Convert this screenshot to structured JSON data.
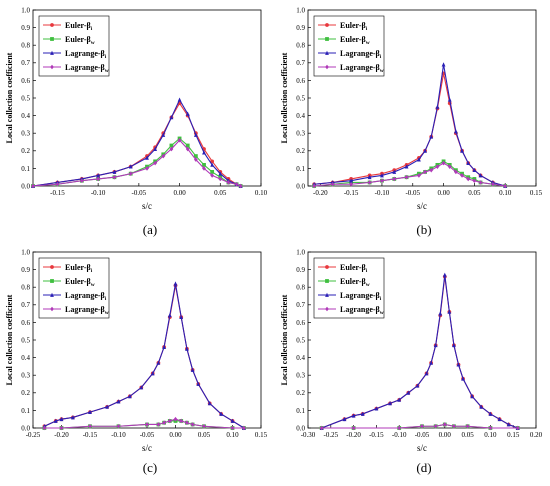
{
  "colors": {
    "euler_i": "#e8383d",
    "euler_w": "#3fbf3f",
    "lagrange_i": "#2a1fb5",
    "lagrange_w": "#b03ab8"
  },
  "chart_data": [
    {
      "panel": "(a)",
      "type": "line",
      "xlabel": "s/c",
      "ylabel": "Local collection coefficient",
      "xlim": [
        -0.18,
        0.1
      ],
      "ylim": [
        0,
        1.0
      ],
      "xticks": [
        -0.15,
        -0.1,
        -0.05,
        0.0,
        0.05,
        0.1
      ],
      "xtick_labels": [
        "-0.15",
        "-0.10",
        "-0.05",
        "0.00",
        "0.05",
        "0.10"
      ],
      "yticks": [
        0,
        0.1,
        0.2,
        0.3,
        0.4,
        0.5,
        0.6,
        0.7,
        0.8,
        0.9,
        1.0
      ],
      "ytick_labels": [
        "0.0",
        "0.1",
        "0.2",
        "0.3",
        "0.4",
        "0.5",
        "0.6",
        "0.7",
        "0.8",
        "0.9",
        "1.0"
      ],
      "legend": [
        "Euler-βi",
        "Euler-βw",
        "Lagrange-βi",
        "Lagrange-βw"
      ],
      "series": [
        {
          "name": "Euler-βi",
          "x": [
            -0.18,
            -0.15,
            -0.12,
            -0.1,
            -0.08,
            -0.06,
            -0.04,
            -0.03,
            -0.02,
            -0.01,
            0,
            0.01,
            0.02,
            0.03,
            0.04,
            0.05,
            0.06,
            0.07,
            0.075
          ],
          "y": [
            0,
            0.02,
            0.04,
            0.06,
            0.08,
            0.11,
            0.17,
            0.22,
            0.3,
            0.39,
            0.47,
            0.4,
            0.3,
            0.21,
            0.14,
            0.08,
            0.04,
            0.01,
            0
          ]
        },
        {
          "name": "Euler-βw",
          "x": [
            -0.18,
            -0.15,
            -0.12,
            -0.1,
            -0.08,
            -0.06,
            -0.04,
            -0.03,
            -0.02,
            -0.01,
            0,
            0.01,
            0.02,
            0.03,
            0.04,
            0.05,
            0.06,
            0.07,
            0.075
          ],
          "y": [
            0,
            0.01,
            0.03,
            0.04,
            0.05,
            0.07,
            0.11,
            0.14,
            0.18,
            0.23,
            0.27,
            0.23,
            0.17,
            0.12,
            0.08,
            0.05,
            0.02,
            0.01,
            0
          ]
        },
        {
          "name": "Lagrange-βi",
          "x": [
            -0.18,
            -0.15,
            -0.12,
            -0.1,
            -0.08,
            -0.06,
            -0.04,
            -0.03,
            -0.02,
            -0.01,
            0,
            0.01,
            0.02,
            0.03,
            0.04,
            0.05,
            0.06,
            0.07,
            0.075
          ],
          "y": [
            0,
            0.02,
            0.04,
            0.06,
            0.08,
            0.11,
            0.16,
            0.21,
            0.29,
            0.39,
            0.49,
            0.41,
            0.29,
            0.19,
            0.12,
            0.07,
            0.03,
            0.01,
            0
          ]
        },
        {
          "name": "Lagrange-βw",
          "x": [
            -0.18,
            -0.15,
            -0.12,
            -0.1,
            -0.08,
            -0.06,
            -0.04,
            -0.03,
            -0.02,
            -0.01,
            0,
            0.01,
            0.02,
            0.03,
            0.04,
            0.05,
            0.06,
            0.07,
            0.075
          ],
          "y": [
            0,
            0.01,
            0.03,
            0.04,
            0.05,
            0.07,
            0.1,
            0.13,
            0.17,
            0.21,
            0.26,
            0.21,
            0.15,
            0.1,
            0.06,
            0.04,
            0.02,
            0.01,
            0
          ]
        }
      ]
    },
    {
      "panel": "(b)",
      "type": "line",
      "xlabel": "s/c",
      "ylabel": "Local collection coefficient",
      "xlim": [
        -0.22,
        0.15
      ],
      "ylim": [
        0,
        1.0
      ],
      "xticks": [
        -0.2,
        -0.15,
        -0.1,
        -0.05,
        0.0,
        0.05,
        0.1,
        0.15
      ],
      "xtick_labels": [
        "-0.20",
        "-0.15",
        "-0.10",
        "-0.05",
        "0.00",
        "0.05",
        "0.10",
        "0.15"
      ],
      "yticks": [
        0,
        0.1,
        0.2,
        0.3,
        0.4,
        0.5,
        0.6,
        0.7,
        0.8,
        0.9,
        1.0
      ],
      "ytick_labels": [
        "0.0",
        "0.1",
        "0.2",
        "0.3",
        "0.4",
        "0.5",
        "0.6",
        "0.7",
        "0.8",
        "0.9",
        "1.0"
      ],
      "legend": [
        "Euler-βi",
        "Euler-βw",
        "Lagrange-βi",
        "Lagrange-βw"
      ],
      "series": [
        {
          "name": "Euler-βi",
          "x": [
            -0.21,
            -0.18,
            -0.15,
            -0.12,
            -0.1,
            -0.08,
            -0.06,
            -0.04,
            -0.03,
            -0.02,
            -0.01,
            0,
            0.01,
            0.02,
            0.03,
            0.04,
            0.05,
            0.06,
            0.08,
            0.1
          ],
          "y": [
            0.01,
            0.02,
            0.04,
            0.06,
            0.07,
            0.09,
            0.12,
            0.16,
            0.2,
            0.28,
            0.44,
            0.64,
            0.47,
            0.3,
            0.2,
            0.13,
            0.09,
            0.06,
            0.02,
            0
          ]
        },
        {
          "name": "Euler-βw",
          "x": [
            -0.21,
            -0.18,
            -0.15,
            -0.12,
            -0.1,
            -0.08,
            -0.06,
            -0.04,
            -0.03,
            -0.02,
            -0.01,
            0,
            0.01,
            0.02,
            0.03,
            0.04,
            0.05,
            0.06,
            0.08,
            0.1
          ],
          "y": [
            0,
            0.01,
            0.02,
            0.02,
            0.03,
            0.04,
            0.05,
            0.07,
            0.08,
            0.1,
            0.12,
            0.14,
            0.12,
            0.09,
            0.07,
            0.05,
            0.04,
            0.02,
            0.01,
            0
          ]
        },
        {
          "name": "Lagrange-βi",
          "x": [
            -0.21,
            -0.18,
            -0.15,
            -0.12,
            -0.1,
            -0.08,
            -0.06,
            -0.04,
            -0.03,
            -0.02,
            -0.01,
            0,
            0.01,
            0.02,
            0.03,
            0.04,
            0.05,
            0.06,
            0.08,
            0.1
          ],
          "y": [
            0.01,
            0.02,
            0.03,
            0.05,
            0.06,
            0.08,
            0.11,
            0.15,
            0.2,
            0.28,
            0.45,
            0.69,
            0.49,
            0.31,
            0.2,
            0.13,
            0.09,
            0.06,
            0.02,
            0
          ]
        },
        {
          "name": "Lagrange-βw",
          "x": [
            -0.21,
            -0.18,
            -0.15,
            -0.12,
            -0.1,
            -0.08,
            -0.06,
            -0.04,
            -0.03,
            -0.02,
            -0.01,
            0,
            0.01,
            0.02,
            0.03,
            0.04,
            0.05,
            0.06,
            0.08,
            0.1
          ],
          "y": [
            0,
            0.01,
            0.01,
            0.02,
            0.03,
            0.04,
            0.05,
            0.06,
            0.08,
            0.09,
            0.11,
            0.13,
            0.11,
            0.08,
            0.06,
            0.04,
            0.03,
            0.02,
            0.01,
            0
          ]
        }
      ]
    },
    {
      "panel": "(c)",
      "type": "line",
      "xlabel": "s/c",
      "ylabel": "Local collection coefficient",
      "xlim": [
        -0.25,
        0.15
      ],
      "ylim": [
        0,
        1.0
      ],
      "xticks": [
        -0.25,
        -0.2,
        -0.15,
        -0.1,
        -0.05,
        0.0,
        0.05,
        0.1,
        0.15
      ],
      "xtick_labels": [
        "-0.25",
        "-0.20",
        "-0.15",
        "-0.10",
        "-0.05",
        "0.00",
        "0.05",
        "0.10",
        "0.15"
      ],
      "yticks": [
        0,
        0.1,
        0.2,
        0.3,
        0.4,
        0.5,
        0.6,
        0.7,
        0.8,
        0.9,
        1.0
      ],
      "ytick_labels": [
        "0.0",
        "0.1",
        "0.2",
        "0.3",
        "0.4",
        "0.5",
        "0.6",
        "0.7",
        "0.8",
        "0.9",
        "1.0"
      ],
      "legend": [
        "Euler-βi",
        "Euler-βw",
        "Lagrange-βi",
        "Lagrange-βw"
      ],
      "series": [
        {
          "name": "Euler-βi",
          "x": [
            -0.23,
            -0.21,
            -0.2,
            -0.18,
            -0.15,
            -0.12,
            -0.1,
            -0.08,
            -0.06,
            -0.04,
            -0.03,
            -0.02,
            -0.01,
            0,
            0.01,
            0.02,
            0.03,
            0.04,
            0.06,
            0.08,
            0.1,
            0.12
          ],
          "y": [
            0.01,
            0.04,
            0.05,
            0.06,
            0.09,
            0.12,
            0.15,
            0.18,
            0.23,
            0.31,
            0.37,
            0.46,
            0.63,
            0.81,
            0.63,
            0.45,
            0.33,
            0.25,
            0.14,
            0.08,
            0.04,
            0
          ]
        },
        {
          "name": "Euler-βw",
          "x": [
            -0.23,
            -0.2,
            -0.15,
            -0.1,
            -0.05,
            -0.03,
            -0.02,
            -0.01,
            0,
            0.01,
            0.02,
            0.03,
            0.05,
            0.1,
            0.12
          ],
          "y": [
            0,
            0.0,
            0.01,
            0.01,
            0.02,
            0.02,
            0.03,
            0.04,
            0.04,
            0.04,
            0.03,
            0.02,
            0.01,
            0.0,
            0
          ]
        },
        {
          "name": "Lagrange-βi",
          "x": [
            -0.23,
            -0.21,
            -0.2,
            -0.18,
            -0.15,
            -0.12,
            -0.1,
            -0.08,
            -0.06,
            -0.04,
            -0.03,
            -0.02,
            -0.01,
            0,
            0.01,
            0.02,
            0.03,
            0.04,
            0.06,
            0.08,
            0.1,
            0.12
          ],
          "y": [
            0.01,
            0.04,
            0.05,
            0.06,
            0.09,
            0.12,
            0.15,
            0.18,
            0.23,
            0.31,
            0.37,
            0.46,
            0.64,
            0.82,
            0.63,
            0.45,
            0.33,
            0.25,
            0.14,
            0.08,
            0.04,
            0
          ]
        },
        {
          "name": "Lagrange-βw",
          "x": [
            -0.23,
            -0.2,
            -0.15,
            -0.1,
            -0.05,
            -0.03,
            -0.02,
            -0.01,
            0,
            0.01,
            0.02,
            0.03,
            0.05,
            0.1,
            0.12
          ],
          "y": [
            0,
            0.0,
            0.01,
            0.01,
            0.02,
            0.02,
            0.03,
            0.04,
            0.05,
            0.04,
            0.03,
            0.02,
            0.01,
            0.0,
            0
          ]
        }
      ]
    },
    {
      "panel": "(d)",
      "type": "line",
      "xlabel": "s/c",
      "ylabel": "Local collection coefficient",
      "xlim": [
        -0.3,
        0.2
      ],
      "ylim": [
        0,
        1.0
      ],
      "xticks": [
        -0.3,
        -0.25,
        -0.2,
        -0.15,
        -0.1,
        -0.05,
        0.0,
        0.05,
        0.1,
        0.15,
        0.2
      ],
      "xtick_labels": [
        "-0.30",
        "-0.25",
        "-0.20",
        "-0.15",
        "-0.10",
        "-0.05",
        "0.00",
        "0.05",
        "0.10",
        "0.15",
        "0.20"
      ],
      "yticks": [
        0,
        0.1,
        0.2,
        0.3,
        0.4,
        0.5,
        0.6,
        0.7,
        0.8,
        0.9,
        1.0
      ],
      "ytick_labels": [
        "0.0",
        "0.1",
        "0.2",
        "0.3",
        "0.4",
        "0.5",
        "0.6",
        "0.7",
        "0.8",
        "0.9",
        "1.0"
      ],
      "legend": [
        "Euler-βi",
        "Euler-βw",
        "Lagrange-βi",
        "Lagrange-βw"
      ],
      "series": [
        {
          "name": "Euler-βi",
          "x": [
            -0.27,
            -0.22,
            -0.2,
            -0.18,
            -0.15,
            -0.12,
            -0.1,
            -0.08,
            -0.06,
            -0.04,
            -0.03,
            -0.02,
            -0.01,
            0,
            0.01,
            0.02,
            0.03,
            0.04,
            0.06,
            0.08,
            0.1,
            0.12,
            0.14,
            0.16
          ],
          "y": [
            0.0,
            0.05,
            0.07,
            0.08,
            0.11,
            0.14,
            0.16,
            0.2,
            0.24,
            0.31,
            0.37,
            0.47,
            0.64,
            0.86,
            0.66,
            0.47,
            0.36,
            0.28,
            0.18,
            0.12,
            0.08,
            0.05,
            0.02,
            0
          ]
        },
        {
          "name": "Euler-βw",
          "x": [
            -0.27,
            -0.2,
            -0.1,
            -0.05,
            -0.02,
            0,
            0.02,
            0.05,
            0.1,
            0.16
          ],
          "y": [
            0,
            0.0,
            0.0,
            0.01,
            0.01,
            0.02,
            0.01,
            0.01,
            0.0,
            0
          ]
        },
        {
          "name": "Lagrange-βi",
          "x": [
            -0.27,
            -0.22,
            -0.2,
            -0.18,
            -0.15,
            -0.12,
            -0.1,
            -0.08,
            -0.06,
            -0.04,
            -0.03,
            -0.02,
            -0.01,
            0,
            0.01,
            0.02,
            0.03,
            0.04,
            0.06,
            0.08,
            0.1,
            0.12,
            0.14,
            0.16
          ],
          "y": [
            0.0,
            0.05,
            0.07,
            0.08,
            0.11,
            0.14,
            0.16,
            0.2,
            0.24,
            0.31,
            0.37,
            0.47,
            0.65,
            0.87,
            0.66,
            0.47,
            0.36,
            0.28,
            0.18,
            0.12,
            0.08,
            0.05,
            0.02,
            0
          ]
        },
        {
          "name": "Lagrange-βw",
          "x": [
            -0.27,
            -0.2,
            -0.1,
            -0.05,
            -0.02,
            0,
            0.02,
            0.05,
            0.1,
            0.16
          ],
          "y": [
            0,
            0.0,
            0.0,
            0.01,
            0.01,
            0.02,
            0.01,
            0.01,
            0.0,
            0
          ]
        }
      ]
    }
  ]
}
